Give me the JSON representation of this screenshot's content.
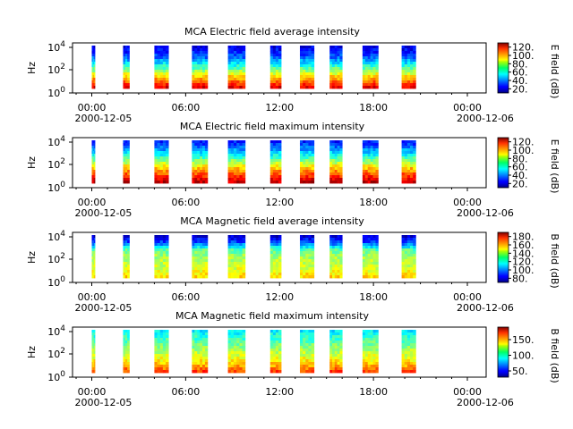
{
  "chart_data": [
    {
      "type": "heatmap",
      "title": "MCA  Electric field average intensity",
      "ylabel": "Hz",
      "yscale": "log",
      "yticks": [
        "10^4",
        "10^2",
        "10^0"
      ],
      "xticks": [
        "00:00",
        "06:00",
        "12:00",
        "18:00",
        "00:00"
      ],
      "xdates": [
        "2000-12-05",
        "2000-12-06"
      ],
      "colorbar_label": "E field (dB)",
      "colorbar_ticks": [
        "120.",
        "100.",
        "80.",
        "60.",
        "40.",
        "20."
      ],
      "colorbar_range": [
        10,
        130
      ],
      "profile": [
        118,
        100,
        82,
        62,
        44,
        30,
        22
      ],
      "bursts_hours": [
        [
          0.0,
          0.2
        ],
        [
          2.0,
          2.4
        ],
        [
          4.0,
          4.9
        ],
        [
          6.4,
          7.4
        ],
        [
          8.7,
          9.8
        ],
        [
          11.4,
          12.1
        ],
        [
          13.3,
          14.2
        ],
        [
          15.2,
          16.0
        ],
        [
          17.3,
          18.3
        ],
        [
          19.8,
          20.7
        ]
      ]
    },
    {
      "type": "heatmap",
      "title": "MCA  Electric field maximum intensity",
      "ylabel": "Hz",
      "yscale": "log",
      "yticks": [
        "10^4",
        "10^2",
        "10^0"
      ],
      "xticks": [
        "00:00",
        "06:00",
        "12:00",
        "18:00",
        "00:00"
      ],
      "xdates": [
        "2000-12-05",
        "2000-12-06"
      ],
      "colorbar_label": "E field (dB)",
      "colorbar_ticks": [
        "120.",
        "100.",
        "80.",
        "60.",
        "40.",
        "20."
      ],
      "colorbar_range": [
        10,
        130
      ],
      "profile": [
        122,
        108,
        92,
        74,
        56,
        40,
        28
      ],
      "bursts_hours": [
        [
          0.0,
          0.2
        ],
        [
          2.0,
          2.4
        ],
        [
          4.0,
          4.9
        ],
        [
          6.4,
          7.4
        ],
        [
          8.7,
          9.8
        ],
        [
          11.4,
          12.1
        ],
        [
          13.3,
          14.2
        ],
        [
          15.2,
          16.0
        ],
        [
          17.3,
          18.3
        ],
        [
          19.8,
          20.7
        ]
      ]
    },
    {
      "type": "heatmap",
      "title": "MCA  Magnetic field average intensity",
      "ylabel": "Hz",
      "yscale": "log",
      "yticks": [
        "10^4",
        "10^2",
        "10^0"
      ],
      "xticks": [
        "00:00",
        "06:00",
        "12:00",
        "18:00",
        "00:00"
      ],
      "xdates": [
        "2000-12-05",
        "2000-12-06"
      ],
      "colorbar_label": "B field (dB)",
      "colorbar_ticks": [
        "180.",
        "160.",
        "140.",
        "120.",
        "100.",
        "80."
      ],
      "colorbar_range": [
        70,
        190
      ],
      "profile": [
        150,
        142,
        138,
        135,
        125,
        95,
        80
      ],
      "bursts_hours": [
        [
          0.0,
          0.2
        ],
        [
          2.0,
          2.4
        ],
        [
          4.0,
          4.9
        ],
        [
          6.4,
          7.4
        ],
        [
          8.7,
          9.8
        ],
        [
          11.4,
          12.1
        ],
        [
          13.3,
          14.2
        ],
        [
          15.2,
          16.0
        ],
        [
          17.3,
          18.3
        ],
        [
          19.8,
          20.7
        ]
      ]
    },
    {
      "type": "heatmap",
      "title": "MCA  Magnetic field maximum intensity",
      "ylabel": "Hz",
      "yscale": "log",
      "yticks": [
        "10^4",
        "10^2",
        "10^0"
      ],
      "xticks": [
        "00:00",
        "06:00",
        "12:00",
        "18:00",
        "00:00"
      ],
      "xdates": [
        "2000-12-05",
        "2000-12-06"
      ],
      "colorbar_label": "B field (dB)",
      "colorbar_ticks": [
        "150.",
        "100.",
        "50."
      ],
      "colorbar_range": [
        30,
        190
      ],
      "profile": [
        160,
        140,
        128,
        118,
        108,
        98,
        88
      ],
      "bursts_hours": [
        [
          0.0,
          0.2
        ],
        [
          2.0,
          2.4
        ],
        [
          4.0,
          4.9
        ],
        [
          6.4,
          7.4
        ],
        [
          8.7,
          9.8
        ],
        [
          11.4,
          12.1
        ],
        [
          13.3,
          14.2
        ],
        [
          15.2,
          16.0
        ],
        [
          17.3,
          18.3
        ],
        [
          19.8,
          20.7
        ]
      ]
    }
  ]
}
